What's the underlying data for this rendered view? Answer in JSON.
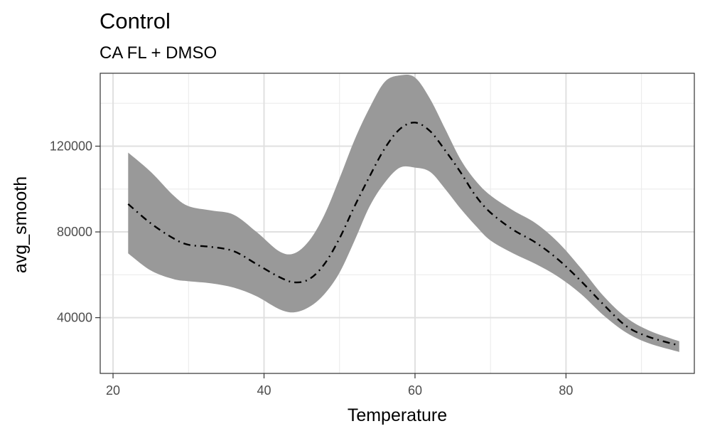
{
  "chart_data": {
    "type": "line",
    "title": "Control",
    "subtitle": "CA FL + DMSO",
    "xlabel": "Temperature",
    "ylabel": "avg_smooth",
    "xlim": [
      18.3,
      97.0
    ],
    "ylim": [
      14000,
      154000
    ],
    "x_ticks": [
      20,
      40,
      60,
      80
    ],
    "x_minor_ticks": [
      30,
      50,
      70,
      90
    ],
    "y_ticks": [
      40000,
      80000,
      120000
    ],
    "y_minor_ticks": [
      60000,
      100000,
      140000
    ],
    "grid": true,
    "line_style": "dashed-dotted",
    "band_color": "#999999",
    "line_color": "#000000",
    "series": [
      {
        "x": [
          22,
          25,
          28,
          30,
          33,
          36,
          39,
          42,
          44,
          46,
          48,
          50,
          52,
          54,
          56,
          58,
          60,
          62,
          64,
          66,
          68,
          70,
          73,
          76,
          79,
          82,
          85,
          88,
          91,
          95
        ],
        "y": [
          93000,
          84000,
          77000,
          74000,
          73000,
          71000,
          65000,
          59000,
          56500,
          58000,
          65000,
          77000,
          92000,
          106000,
          119000,
          128000,
          131000,
          127000,
          118000,
          108000,
          97000,
          89000,
          81000,
          75000,
          67000,
          57000,
          46000,
          36000,
          31000,
          27000
        ],
        "ci_upper": [
          117000,
          108000,
          97000,
          92000,
          90000,
          88000,
          80000,
          71000,
          70000,
          76000,
          88000,
          105000,
          123000,
          138000,
          150000,
          153000,
          152000,
          142000,
          128000,
          114000,
          104000,
          97000,
          90000,
          84000,
          75000,
          63000,
          50000,
          40000,
          34000,
          29000
        ],
        "ci_lower": [
          70000,
          62000,
          58000,
          57000,
          56000,
          54000,
          50000,
          44000,
          42500,
          45000,
          51000,
          61000,
          76000,
          92000,
          103000,
          110000,
          110000,
          108000,
          100000,
          91000,
          83000,
          76000,
          70000,
          65000,
          59000,
          51000,
          41000,
          33000,
          28000,
          24000
        ]
      }
    ]
  }
}
